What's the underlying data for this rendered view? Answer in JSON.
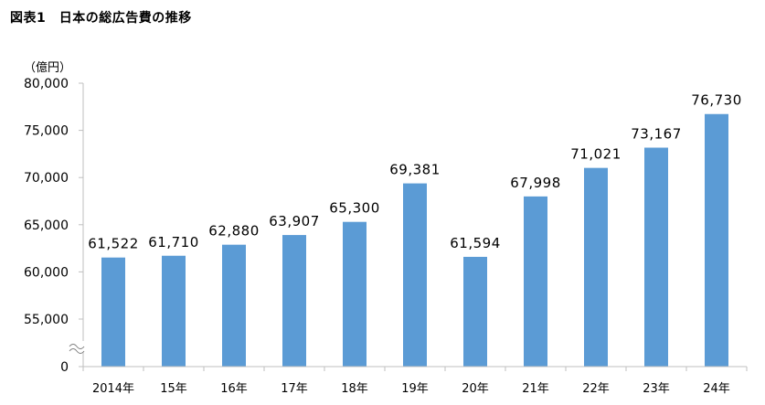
{
  "title": "図表1　日本の総広告費の推移",
  "chart_data": {
    "type": "bar",
    "title": "図表1　日本の総広告費の推移",
    "unit_label": "（億円）",
    "xlabel": "",
    "ylabel": "",
    "categories": [
      "2014年",
      "15年",
      "16年",
      "17年",
      "18年",
      "19年",
      "20年",
      "21年",
      "22年",
      "23年",
      "24年"
    ],
    "values": [
      61522,
      61710,
      62880,
      63907,
      65300,
      69381,
      61594,
      67998,
      71021,
      73167,
      76730
    ],
    "data_labels": [
      "61,522",
      "61,710",
      "62,880",
      "63,907",
      "65,300",
      "69,381",
      "61,594",
      "67,998",
      "71,021",
      "73,167",
      "76,730"
    ],
    "y_ticks": [
      "80,000",
      "75,000",
      "70,000",
      "65,000",
      "60,000",
      "55,000",
      "0"
    ],
    "y_tick_values": [
      80000,
      75000,
      70000,
      65000,
      60000,
      55000,
      0
    ],
    "ylim": [
      0,
      80000
    ],
    "axis_break": true,
    "bar_color": "#5B9BD5",
    "grid": false,
    "legend": "none"
  }
}
